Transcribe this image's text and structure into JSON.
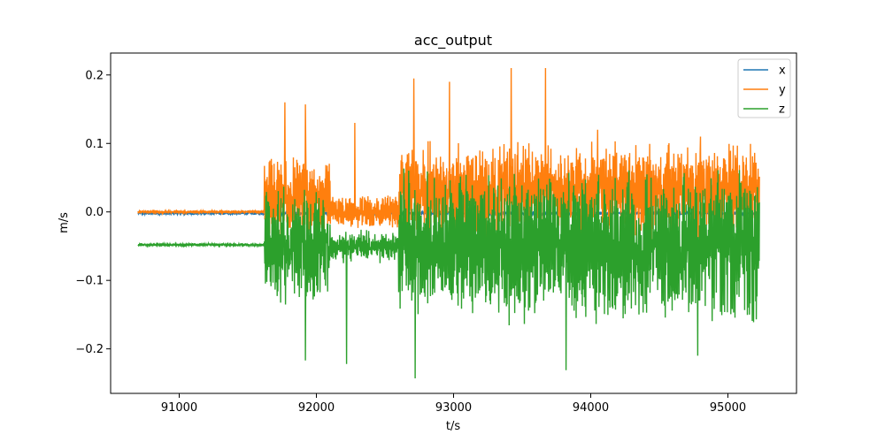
{
  "chart_data": {
    "type": "line",
    "title": "acc_output",
    "xlabel": "t/s",
    "ylabel": "m/s",
    "xlim": [
      90500,
      95500
    ],
    "ylim": [
      -0.265,
      0.232
    ],
    "x_ticks": [
      91000,
      92000,
      93000,
      94000,
      95000
    ],
    "x_tick_labels": [
      "91000",
      "92000",
      "93000",
      "94000",
      "95000"
    ],
    "y_ticks": [
      -0.2,
      -0.1,
      0.0,
      0.1,
      0.2
    ],
    "y_tick_labels": [
      "−0.2",
      "−0.1",
      "0.0",
      "0.1",
      "0.2"
    ],
    "grid": false,
    "legend": "upper-right",
    "x_range": [
      90700,
      95230
    ],
    "series": [
      {
        "name": "x",
        "color": "#1f77b4",
        "keypoints": [
          [
            90700,
            -0.002
          ],
          [
            95230,
            -0.002
          ]
        ],
        "baseline": -0.002,
        "noise_amp": 0.002
      },
      {
        "name": "y",
        "color": "#ff7f0e",
        "baseline_segments": [
          {
            "x": [
              90700,
              91620
            ],
            "base": 0.0,
            "amp": 0.002
          },
          {
            "x": [
              91620,
              92100
            ],
            "base": 0.02,
            "amp": 0.05
          },
          {
            "x": [
              92100,
              92600
            ],
            "base": 0.0,
            "amp": 0.02
          },
          {
            "x": [
              92600,
              95230
            ],
            "base": 0.03,
            "amp": 0.06
          }
        ],
        "peaks": [
          [
            91770,
            0.16
          ],
          [
            91920,
            0.157
          ],
          [
            92280,
            0.13
          ],
          [
            92710,
            0.195
          ],
          [
            92970,
            0.19
          ],
          [
            93420,
            0.21
          ],
          [
            93670,
            0.21
          ],
          [
            94050,
            0.12
          ],
          [
            94800,
            0.11
          ]
        ]
      },
      {
        "name": "z",
        "color": "#2ca02c",
        "baseline_segments": [
          {
            "x": [
              90700,
              91620
            ],
            "base": -0.048,
            "amp": 0.002
          },
          {
            "x": [
              91620,
              92100
            ],
            "base": -0.05,
            "amp": 0.07
          },
          {
            "x": [
              92100,
              92600
            ],
            "base": -0.05,
            "amp": 0.02
          },
          {
            "x": [
              92600,
              95230
            ],
            "base": -0.05,
            "amp": 0.09
          }
        ],
        "peaks": [
          [
            91920,
            -0.217
          ],
          [
            92220,
            -0.222
          ],
          [
            92720,
            -0.243
          ],
          [
            93820,
            -0.231
          ],
          [
            94780,
            -0.21
          ]
        ]
      }
    ]
  }
}
